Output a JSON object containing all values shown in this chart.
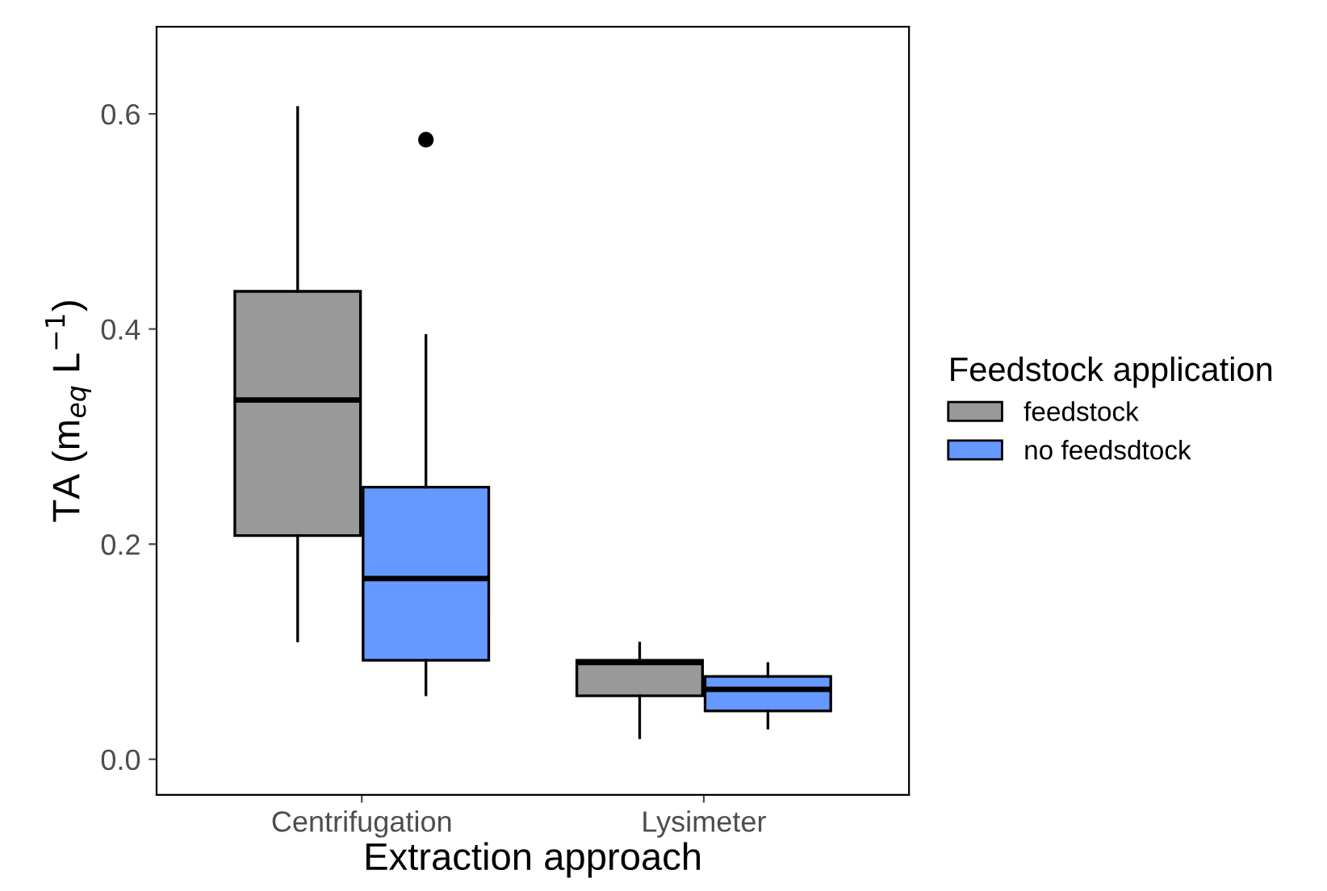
{
  "chart_data": {
    "type": "box",
    "xlabel": "Extraction approach",
    "ylabel": "TA (m$_{eq}$ L$^{−1}$)",
    "legend_title": "Feedstock application",
    "legend": "right",
    "grid": false,
    "categories": [
      "Centrifugation",
      "Lysimeter"
    ],
    "ylim": [
      -0.033,
      0.681
    ],
    "yticks": [
      {
        "value": 0.0,
        "label": "0.0"
      },
      {
        "value": 0.2,
        "label": "0.2"
      },
      {
        "value": 0.4,
        "label": "0.4"
      },
      {
        "value": 0.6,
        "label": "0.6"
      }
    ],
    "series": [
      {
        "name": "feedstock",
        "color": "#999999",
        "boxes": [
          {
            "low": 0.11,
            "q1": 0.208,
            "median": 0.334,
            "q3": 0.435,
            "high": 0.606
          },
          {
            "low": 0.02,
            "q1": 0.059,
            "median": 0.09,
            "q3": 0.092,
            "high": 0.108
          }
        ]
      },
      {
        "name": "no feedsdtock",
        "color": "#6699ff",
        "boxes": [
          {
            "low": 0.06,
            "q1": 0.092,
            "median": 0.168,
            "q3": 0.253,
            "high": 0.394,
            "outliers": [
              0.576
            ]
          },
          {
            "low": 0.029,
            "q1": 0.045,
            "median": 0.065,
            "q3": 0.077,
            "high": 0.089
          }
        ]
      }
    ]
  }
}
